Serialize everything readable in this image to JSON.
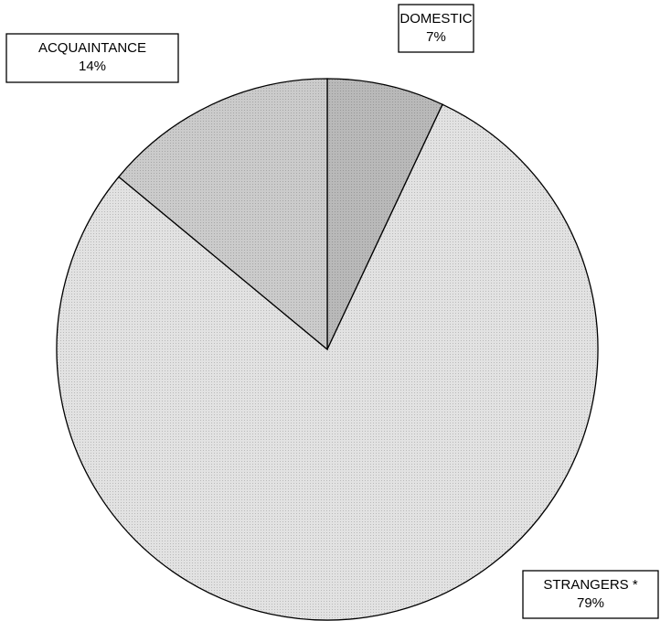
{
  "chart_data": {
    "type": "pie",
    "categories": [
      "DOMESTIC",
      "STRANGERS *",
      "ACQUAINTANCE"
    ],
    "values": [
      7,
      79,
      14
    ],
    "value_labels": [
      "7%",
      "79%",
      "14%"
    ],
    "colors": [
      "#b9b9b9",
      "#e2e2e2",
      "#cbcbcb"
    ]
  }
}
